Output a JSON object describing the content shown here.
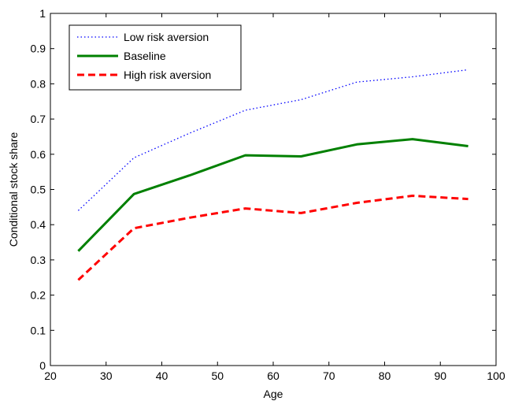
{
  "chart_data": {
    "type": "line",
    "title": "",
    "xlabel": "Age",
    "ylabel": "Conditional stock share",
    "xlim": [
      20,
      100
    ],
    "ylim": [
      0,
      1
    ],
    "xticks": [
      "20",
      "30",
      "40",
      "50",
      "60",
      "70",
      "80",
      "90",
      "100"
    ],
    "yticks": [
      "0",
      "0.1",
      "0.2",
      "0.3",
      "0.4",
      "0.5",
      "0.6",
      "0.7",
      "0.8",
      "0.9",
      "1"
    ],
    "grid": false,
    "legend_position": "top-left",
    "x": [
      25,
      35,
      45,
      55,
      65,
      75,
      85,
      95
    ],
    "series": [
      {
        "name": "Low risk aversion",
        "color": "#0000ff",
        "style": "dotted",
        "values": [
          0.44,
          0.59,
          0.66,
          0.725,
          0.755,
          0.805,
          0.82,
          0.84
        ]
      },
      {
        "name": "Baseline",
        "color": "#008000",
        "style": "solid",
        "values": [
          0.325,
          0.487,
          0.54,
          0.597,
          0.594,
          0.628,
          0.643,
          0.623
        ]
      },
      {
        "name": "High risk aversion",
        "color": "#ff0000",
        "style": "dashed",
        "values": [
          0.243,
          0.39,
          0.42,
          0.446,
          0.433,
          0.462,
          0.482,
          0.473
        ]
      }
    ]
  }
}
